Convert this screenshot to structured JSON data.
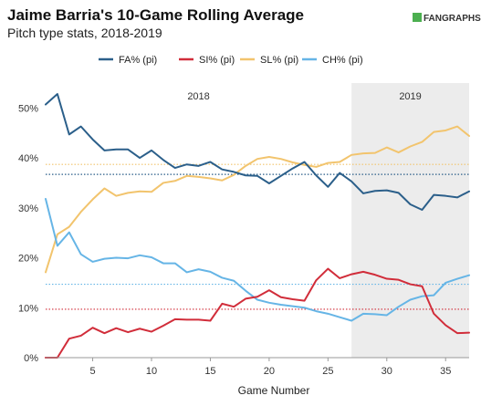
{
  "brand": {
    "logo_text": "FANGRAPHS",
    "logo_color": "#4caf50"
  },
  "chart_data": {
    "type": "line",
    "title": "Jaime Barria's 10-Game Rolling Average",
    "subtitle": "Pitch type stats, 2018-2019",
    "xlabel": "Game Number",
    "ylabel": "",
    "xlim": [
      1,
      37
    ],
    "ylim": [
      0,
      55
    ],
    "x_ticks": [
      5,
      10,
      15,
      20,
      25,
      30,
      35
    ],
    "y_ticks": [
      0,
      10,
      20,
      30,
      40,
      50
    ],
    "y_tick_labels": [
      "0%",
      "10%",
      "20%",
      "30%",
      "40%",
      "50%"
    ],
    "grid": false,
    "legend_position": "top",
    "seasons": [
      {
        "label": "2018",
        "start": 1,
        "end": 27,
        "shaded": false
      },
      {
        "label": "2019",
        "start": 27,
        "end": 37,
        "shaded": true,
        "fill": "#ececec"
      }
    ],
    "x": [
      1,
      2,
      3,
      4,
      5,
      6,
      7,
      8,
      9,
      10,
      11,
      12,
      13,
      14,
      15,
      16,
      17,
      18,
      19,
      20,
      21,
      22,
      23,
      24,
      25,
      26,
      27,
      28,
      29,
      30,
      31,
      32,
      33,
      34,
      35,
      36,
      37
    ],
    "series": [
      {
        "name": "FA% (pi)",
        "color": "#2b5f8a",
        "average": 36.7,
        "values": [
          50.7,
          52.8,
          44.7,
          46.3,
          43.7,
          41.5,
          41.7,
          41.7,
          40.0,
          41.5,
          39.6,
          38.0,
          38.7,
          38.4,
          39.2,
          37.7,
          37.2,
          36.5,
          36.4,
          34.9,
          36.4,
          37.9,
          39.2,
          36.5,
          34.2,
          37.0,
          35.3,
          32.9,
          33.4,
          33.5,
          33.0,
          30.7,
          29.6,
          32.6,
          32.4,
          32.1,
          33.3
        ]
      },
      {
        "name": "SI% (pi)",
        "color": "#d12d3a",
        "average": 9.7,
        "values": [
          0.0,
          0.0,
          3.8,
          4.4,
          6.0,
          4.9,
          5.9,
          5.1,
          5.8,
          5.2,
          6.4,
          7.7,
          7.6,
          7.6,
          7.4,
          10.8,
          10.2,
          11.8,
          12.2,
          13.5,
          12.1,
          11.7,
          11.4,
          15.5,
          17.8,
          15.9,
          16.7,
          17.2,
          16.6,
          15.8,
          15.6,
          14.7,
          14.3,
          8.8,
          6.5,
          4.9,
          5.0
        ]
      },
      {
        "name": "SL% (pi)",
        "color": "#f2c46d",
        "average": 38.7,
        "values": [
          17.1,
          24.7,
          26.2,
          29.2,
          31.7,
          33.9,
          32.4,
          33.0,
          33.3,
          33.2,
          35.0,
          35.4,
          36.4,
          36.2,
          35.9,
          35.5,
          36.6,
          38.4,
          39.8,
          40.2,
          39.8,
          39.1,
          38.6,
          38.2,
          39.0,
          39.2,
          40.6,
          40.9,
          41.0,
          42.1,
          41.1,
          42.3,
          43.2,
          45.2,
          45.5,
          46.3,
          44.4
        ]
      },
      {
        "name": "CH% (pi)",
        "color": "#66b5e6",
        "average": 14.7,
        "values": [
          31.8,
          22.4,
          25.1,
          20.7,
          19.2,
          19.8,
          20.0,
          19.9,
          20.5,
          20.1,
          18.9,
          18.9,
          17.1,
          17.7,
          17.2,
          16.0,
          15.4,
          13.4,
          11.6,
          11.0,
          10.6,
          10.3,
          10.0,
          9.3,
          8.8,
          8.1,
          7.4,
          8.8,
          8.7,
          8.5,
          10.2,
          11.6,
          12.3,
          12.5,
          15.0,
          15.8,
          16.5
        ]
      }
    ]
  }
}
